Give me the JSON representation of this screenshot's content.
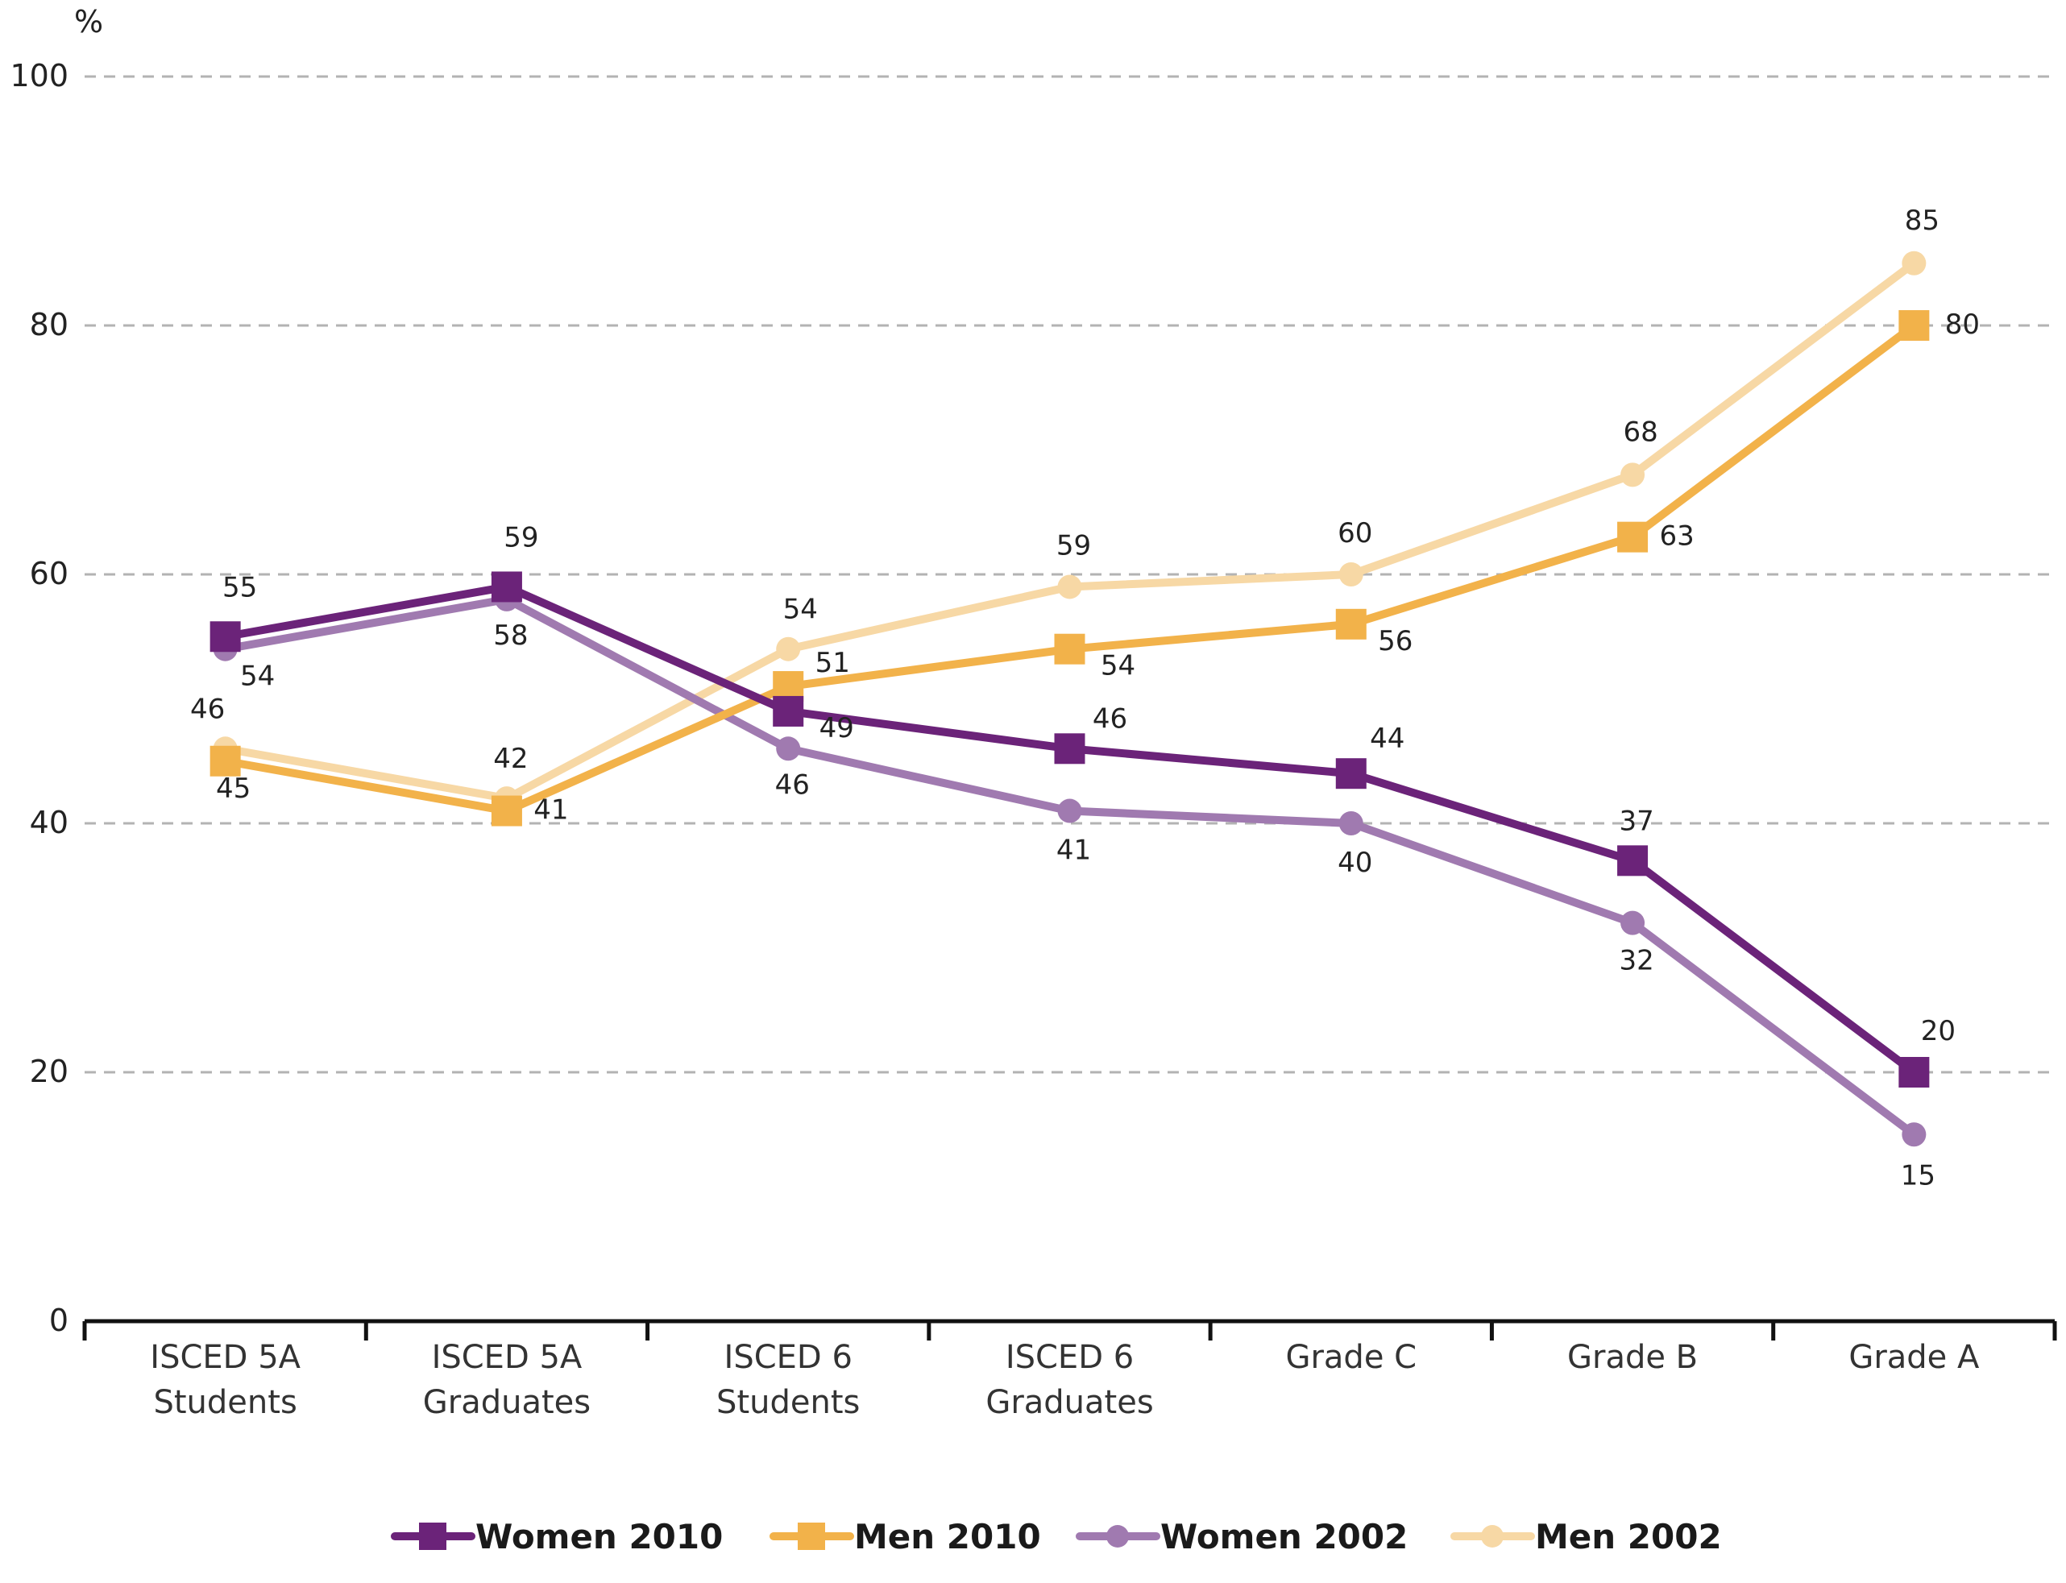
{
  "chart_data": {
    "type": "line",
    "title": "",
    "xlabel": "",
    "ylabel": "%",
    "ylim": [
      0,
      100
    ],
    "yticks": [
      0,
      20,
      40,
      60,
      80,
      100
    ],
    "grid": true,
    "legend_position": "bottom",
    "categories": [
      [
        "ISCED 5A",
        "Students"
      ],
      [
        "ISCED 5A",
        "Graduates"
      ],
      [
        "ISCED 6",
        "Students"
      ],
      [
        "ISCED 6",
        "Graduates"
      ],
      [
        "Grade C"
      ],
      [
        "Grade B"
      ],
      [
        "Grade A"
      ]
    ],
    "series": [
      {
        "name": "Women 2010",
        "color": "#6b2379",
        "marker": "square",
        "values": [
          55,
          59,
          49,
          46,
          44,
          37,
          20
        ]
      },
      {
        "name": "Men 2010",
        "color": "#f2b24a",
        "marker": "square",
        "values": [
          45,
          41,
          51,
          54,
          56,
          63,
          80
        ]
      },
      {
        "name": "Women 2002",
        "color": "#a07ab0",
        "marker": "circle",
        "values": [
          54,
          58,
          46,
          41,
          40,
          32,
          15
        ]
      },
      {
        "name": "Men 2002",
        "color": "#f7d8a5",
        "marker": "circle",
        "values": [
          46,
          42,
          54,
          59,
          60,
          68,
          85
        ]
      }
    ]
  }
}
